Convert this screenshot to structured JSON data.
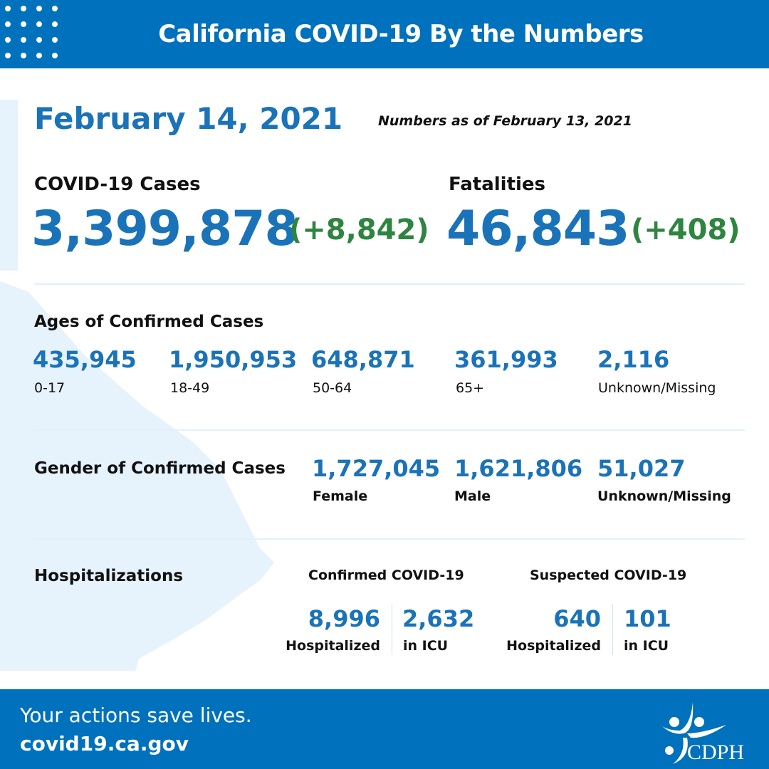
{
  "header": {
    "title": "California COVID-19 By the Numbers"
  },
  "date": "February 14, 2021",
  "as_of": "Numbers as of February 13, 2021",
  "cases": {
    "label": "COVID-19 Cases",
    "value": "3,399,878",
    "change": "(+8,842)"
  },
  "fatalities": {
    "label": "Fatalities",
    "value": "46,843",
    "change": "(+408)"
  },
  "ages": {
    "title": "Ages of Confirmed Cases",
    "items": [
      {
        "value": "435,945",
        "label": "0-17"
      },
      {
        "value": "1,950,953",
        "label": "18-49"
      },
      {
        "value": "648,871",
        "label": "50-64"
      },
      {
        "value": "361,993",
        "label": "65+"
      },
      {
        "value": "2,116",
        "label": "Unknown/Missing"
      }
    ]
  },
  "gender": {
    "title": "Gender of Confirmed Cases",
    "items": [
      {
        "value": "1,727,045",
        "label": "Female"
      },
      {
        "value": "1,621,806",
        "label": "Male"
      },
      {
        "value": "51,027",
        "label": "Unknown/Missing"
      }
    ]
  },
  "hosp": {
    "title": "Hospitalizations",
    "confirmed": {
      "title": "Confirmed COVID-19",
      "hosp_value": "8,996",
      "hosp_label": "Hospitalized",
      "icu_value": "2,632",
      "icu_label": "in ICU"
    },
    "suspected": {
      "title": "Suspected COVID-19",
      "hosp_value": "640",
      "hosp_label": "Hospitalized",
      "icu_value": "101",
      "icu_label": "in ICU"
    }
  },
  "footer": {
    "tagline": "Your actions save lives.",
    "url": "covid19.ca.gov",
    "logo_text": "CDPH"
  },
  "colors": {
    "brand": "#0071bc",
    "number": "#1a73b8",
    "change": "#2e8540",
    "map": "#e6f2fc"
  }
}
